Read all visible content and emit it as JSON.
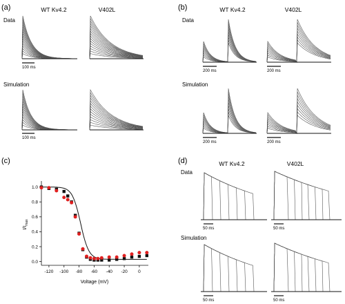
{
  "panels": {
    "a": {
      "label": "(a)",
      "columns": [
        "WT Kv4.2",
        "V402L"
      ],
      "rows": [
        "Data",
        "Simulation"
      ],
      "scale_bar": "100 ms"
    },
    "b": {
      "label": "(b)",
      "columns": [
        "WT Kv4.2",
        "V402L"
      ],
      "rows": [
        "Data",
        "Simulation"
      ],
      "scale_bar": "200 ms"
    },
    "c": {
      "label": "(c)",
      "ylabel": "I/I",
      "ylabel_sub": "max",
      "xlabel": "Voltage (mV)"
    },
    "d": {
      "label": "(d)",
      "columns": [
        "WT Kv4.2",
        "V402L"
      ],
      "rows": [
        "Data",
        "Simulation"
      ],
      "scale_bar": "50 ms"
    }
  },
  "colors": {
    "trace": "#555555",
    "series_black": "#111111",
    "series_red": "#e02020",
    "fit_line": "#111111"
  },
  "chart_data": {
    "type": "scatter",
    "x_ticks": [
      -120,
      -100,
      -80,
      -60,
      -40,
      -20,
      0
    ],
    "y_ticks": [
      "0.0",
      "0.2",
      "0.4",
      "0.6",
      "0.8",
      "1.0"
    ],
    "xlim": [
      -130,
      12
    ],
    "ylim": [
      -0.05,
      1.08
    ],
    "series": [
      {
        "color": "#111111",
        "marker": "square",
        "x": [
          -130,
          -120,
          -110,
          -100,
          -95,
          -90,
          -85,
          -80,
          -75,
          -70,
          -65,
          -60,
          -55,
          -50,
          -40,
          -30,
          -20,
          -10,
          0,
          10
        ],
        "y": [
          1.0,
          0.98,
          0.97,
          0.94,
          0.88,
          0.8,
          0.62,
          0.38,
          0.16,
          0.06,
          0.03,
          0.02,
          0.02,
          0.02,
          0.02,
          0.03,
          0.04,
          0.06,
          0.07,
          0.08
        ]
      },
      {
        "color": "#e02020",
        "marker": "circle",
        "x": [
          -130,
          -120,
          -110,
          -100,
          -95,
          -90,
          -85,
          -80,
          -75,
          -70,
          -65,
          -60,
          -55,
          -50,
          -40,
          -30,
          -20,
          -10,
          0,
          10
        ],
        "y": [
          0.99,
          0.99,
          0.95,
          0.86,
          0.83,
          0.79,
          0.6,
          0.37,
          0.17,
          0.07,
          0.05,
          0.04,
          0.04,
          0.05,
          0.06,
          0.06,
          0.08,
          0.1,
          0.12,
          0.12
        ]
      }
    ]
  }
}
